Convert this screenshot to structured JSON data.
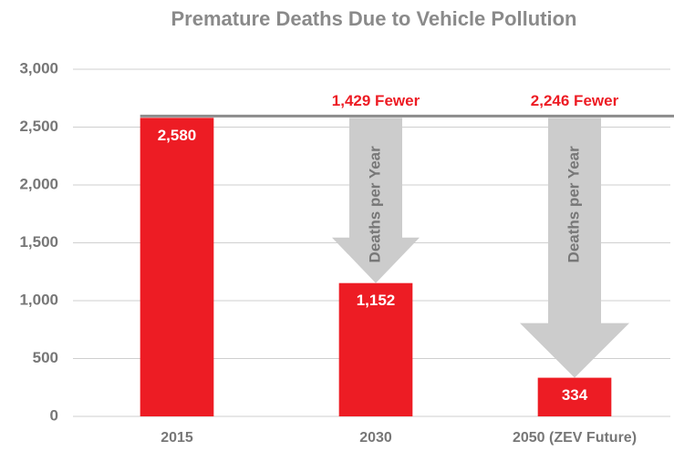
{
  "chart_data": {
    "type": "bar",
    "title": "Premature Deaths Due to Vehicle Pollution",
    "categories": [
      "2015",
      "2030",
      "2050 (ZEV Future)"
    ],
    "values": [
      2580,
      1152,
      334
    ],
    "value_labels": [
      "2,580",
      "1,152",
      "334"
    ],
    "color": "#ed1c24",
    "ylim": [
      0,
      3000
    ],
    "yticks": [
      0,
      500,
      {
        "value": 1000,
        "label": "1,000"
      },
      {
        "value": 1500,
        "label": "1,500"
      },
      {
        "value": 2000,
        "label": "2,000"
      },
      {
        "value": 2500,
        "label": "2,500"
      },
      {
        "value": 3000,
        "label": "3,000"
      }
    ],
    "grid": true,
    "annotations": [
      {
        "label": "1,429 Fewer",
        "arrow_text": "Deaths per Year"
      },
      {
        "label": "2,246 Fewer",
        "arrow_text": "Deaths per Year"
      }
    ]
  }
}
